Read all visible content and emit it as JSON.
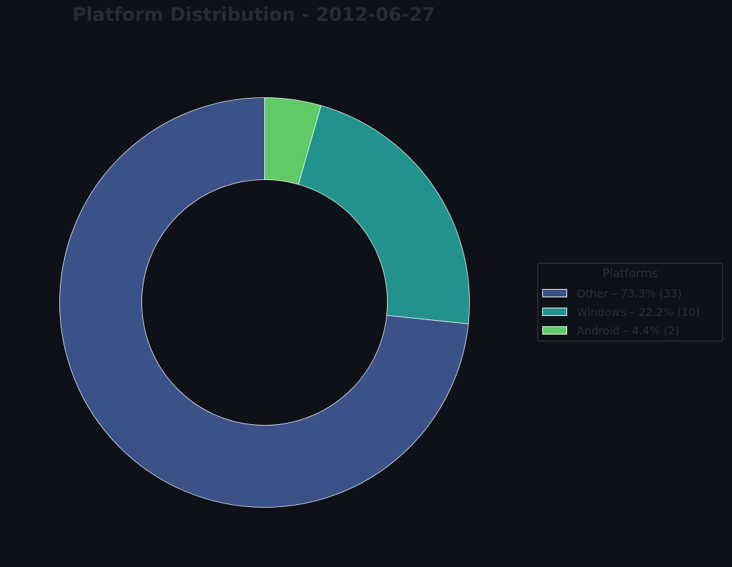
{
  "chart_data": {
    "type": "pie",
    "title": "Platform Distribution - 2012-06-27",
    "legend_title": "Platforms",
    "legend_position": "center-right",
    "donut": true,
    "slices": [
      {
        "label": "Android",
        "value": 2,
        "legend_text": "Android – 4.4% (2)",
        "color": "#5fca66"
      },
      {
        "label": "Windows",
        "value": 10,
        "legend_text": "Windows – 22.2% (10)",
        "color": "#22938c"
      },
      {
        "label": "Other",
        "value": 33,
        "legend_text": "Other – 73.3% (33)",
        "color": "#3b5289"
      }
    ],
    "legend_order": [
      "Other",
      "Windows",
      "Android"
    ]
  },
  "colors": {
    "background": "#0e1117",
    "slice_edge": "#ffffff",
    "text": "#2e3035"
  }
}
